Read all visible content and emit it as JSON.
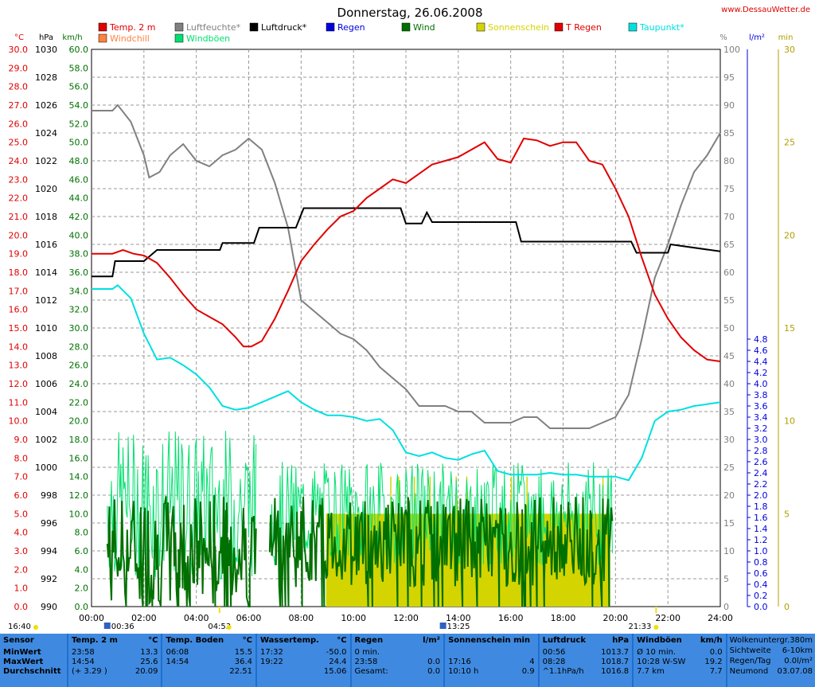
{
  "header": {
    "title": "Donnerstag, 26.06.2008",
    "site": "www.DessauWetter.de"
  },
  "legend": [
    {
      "label": "Temp. 2 m",
      "color": "#e00000"
    },
    {
      "label": "Luftfeuchte*",
      "color": "#808080"
    },
    {
      "label": "Luftdruck*",
      "color": "#000000"
    },
    {
      "label": "Regen",
      "color": "#0000e0"
    },
    {
      "label": "Wind",
      "color": "#007000"
    },
    {
      "label": "Sonnenschein",
      "color": "#d4d400"
    },
    {
      "label": "T Regen",
      "color": "#e00000"
    },
    {
      "label": "Taupunkt*",
      "color": "#00e0e0"
    },
    {
      "label": "Windchill",
      "color": "#ff8040"
    },
    {
      "label": "Windböen",
      "color": "#00e070"
    }
  ],
  "axis_units": {
    "temp": "°C",
    "pressure": "hPa",
    "wind": "km/h",
    "humidity": "%",
    "rain": "l/m²",
    "sun": "min"
  },
  "markers": {
    "sunrise": "04:53",
    "sunset": "21:33",
    "moonset": "16:40",
    "moon1": "00:36",
    "moon2": "13:25"
  },
  "chart_data": {
    "type": "line",
    "x_label": "time",
    "x_ticks": [
      "00:00",
      "02:00",
      "04:00",
      "06:00",
      "08:00",
      "10:00",
      "12:00",
      "14:00",
      "16:00",
      "18:00",
      "20:00",
      "22:00",
      "24:00"
    ],
    "axes": {
      "temp": {
        "range": [
          0,
          30
        ],
        "ticks": [
          "0.0",
          "1.0",
          "2.0",
          "3.0",
          "4.0",
          "5.0",
          "6.0",
          "7.0",
          "8.0",
          "9.0",
          "10.0",
          "11.0",
          "12.0",
          "13.0",
          "14.0",
          "15.0",
          "16.0",
          "17.0",
          "18.0",
          "19.0",
          "20.0",
          "21.0",
          "22.0",
          "23.0",
          "24.0",
          "25.0",
          "26.0",
          "27.0",
          "28.0",
          "29.0",
          "30.0"
        ]
      },
      "pressure": {
        "range": [
          990,
          1030
        ],
        "ticks": [
          "990",
          "992",
          "994",
          "996",
          "998",
          "1000",
          "1002",
          "1004",
          "1006",
          "1008",
          "1010",
          "1012",
          "1014",
          "1016",
          "1018",
          "1020",
          "1022",
          "1024",
          "1026",
          "1028",
          "1030"
        ]
      },
      "wind": {
        "range": [
          0,
          60
        ],
        "ticks": [
          "0.0",
          "2.0",
          "4.0",
          "6.0",
          "8.0",
          "10.0",
          "12.0",
          "14.0",
          "16.0",
          "18.0",
          "20.0",
          "22.0",
          "24.0",
          "26.0",
          "28.0",
          "30.0",
          "32.0",
          "34.0",
          "36.0",
          "38.0",
          "40.0",
          "42.0",
          "44.0",
          "46.0",
          "48.0",
          "50.0",
          "52.0",
          "54.0",
          "56.0",
          "58.0",
          "60.0"
        ]
      },
      "humidity": {
        "range": [
          0,
          100
        ],
        "ticks": [
          "0",
          "5",
          "10",
          "15",
          "20",
          "25",
          "30",
          "35",
          "40",
          "45",
          "50",
          "55",
          "60",
          "65",
          "70",
          "75",
          "80",
          "85",
          "90",
          "95",
          "100"
        ]
      },
      "rain": {
        "range": [
          0,
          4.8
        ],
        "ticks": [
          "0.0",
          "0.2",
          "0.4",
          "0.6",
          "0.8",
          "1.0",
          "1.2",
          "1.4",
          "1.6",
          "1.8",
          "2.0",
          "2.2",
          "2.4",
          "2.6",
          "2.8",
          "3.0",
          "3.2",
          "3.4",
          "3.6",
          "3.8",
          "4.0",
          "4.2",
          "4.4",
          "4.6",
          "4.8"
        ]
      },
      "sun": {
        "range": [
          0,
          30
        ],
        "ticks": [
          "0",
          "5",
          "10",
          "15",
          "20",
          "25",
          "30"
        ]
      }
    },
    "series": [
      {
        "name": "Temp. 2 m",
        "axis": "temp",
        "color": "#e00000",
        "x": [
          0,
          0.8,
          1.2,
          1.6,
          2.0,
          2.5,
          3,
          3.5,
          4,
          4.5,
          5,
          5.5,
          5.8,
          6.1,
          6.5,
          7,
          7.5,
          8,
          8.5,
          9,
          9.5,
          10,
          10.5,
          11,
          11.5,
          12,
          12.5,
          13,
          13.5,
          14,
          14.5,
          15,
          15.5,
          16,
          16.5,
          17,
          17.5,
          18,
          18.5,
          19,
          19.5,
          20,
          20.5,
          21,
          21.5,
          22,
          22.5,
          23,
          23.5,
          24
        ],
        "y": [
          19.0,
          19.0,
          19.2,
          19.0,
          18.9,
          18.5,
          17.7,
          16.8,
          16.0,
          15.6,
          15.2,
          14.5,
          14.0,
          14.0,
          14.3,
          15.5,
          17.0,
          18.6,
          19.5,
          20.3,
          21.0,
          21.3,
          22.0,
          22.5,
          23.0,
          22.8,
          23.3,
          23.8,
          24.0,
          24.2,
          24.6,
          25.0,
          24.1,
          23.9,
          25.2,
          25.1,
          24.8,
          25.0,
          25.0,
          24.0,
          23.8,
          22.5,
          21.0,
          18.8,
          16.8,
          15.5,
          14.5,
          13.8,
          13.3,
          13.2
        ]
      },
      {
        "name": "Luftfeuchte*",
        "axis": "humidity",
        "color": "#808080",
        "x": [
          0,
          0.8,
          1.0,
          1.5,
          2.0,
          2.2,
          2.6,
          3,
          3.5,
          4,
          4.5,
          5,
          5.5,
          6,
          6.5,
          7,
          7.5,
          8,
          8.5,
          9,
          9.5,
          10,
          10.5,
          11,
          11.5,
          12,
          12.5,
          13,
          13.5,
          14,
          14.5,
          15,
          15.5,
          16,
          16.5,
          17,
          17.5,
          18,
          18.5,
          19,
          19.5,
          20,
          20.5,
          21,
          21.5,
          22,
          22.5,
          23,
          23.5,
          24
        ],
        "y": [
          89,
          89,
          90,
          87,
          81,
          77,
          78,
          81,
          83,
          80,
          79,
          81,
          82,
          84,
          82,
          76,
          68,
          55,
          53,
          51,
          49,
          48,
          46,
          43,
          41,
          39,
          36,
          36,
          36,
          35,
          35,
          33,
          33,
          33,
          34,
          34,
          32,
          32,
          32,
          32,
          33,
          34,
          38,
          48,
          59,
          65,
          72,
          78,
          81,
          85
        ]
      },
      {
        "name": "Luftdruck*",
        "axis": "pressure",
        "color": "#000000",
        "x": [
          0,
          0.8,
          0.9,
          2.0,
          2.5,
          3,
          4.9,
          5.0,
          6.2,
          6.4,
          7.8,
          8.1,
          10,
          11.8,
          12.0,
          12.6,
          12.8,
          13.0,
          16.2,
          16.4,
          20.6,
          20.8,
          22,
          22.1,
          24
        ],
        "y": [
          1013.7,
          1013.7,
          1014.8,
          1014.8,
          1015.6,
          1015.6,
          1015.6,
          1016.1,
          1016.1,
          1017.2,
          1017.2,
          1018.6,
          1018.6,
          1018.6,
          1017.5,
          1017.5,
          1018.3,
          1017.6,
          1017.6,
          1016.2,
          1016.2,
          1015.4,
          1015.4,
          1016.0,
          1015.5
        ]
      },
      {
        "name": "Taupunkt*",
        "axis": "temp",
        "color": "#00e0e0",
        "x": [
          0,
          0.8,
          1.0,
          1.5,
          2.0,
          2.5,
          3,
          3.5,
          4,
          4.5,
          5,
          5.5,
          6,
          6.5,
          7,
          7.5,
          8,
          8.5,
          9,
          9.5,
          10,
          10.5,
          11,
          11.5,
          12,
          12.5,
          13,
          13.5,
          14,
          14.5,
          15,
          15.5,
          16,
          16.5,
          17,
          17.5,
          18,
          18.5,
          19,
          19.5,
          20,
          20.5,
          21,
          21.5,
          22,
          22.5,
          23,
          23.5,
          24
        ],
        "y": [
          17.1,
          17.1,
          17.3,
          16.6,
          14.7,
          13.3,
          13.4,
          13.0,
          12.5,
          11.8,
          10.8,
          10.6,
          10.7,
          11.0,
          11.3,
          11.6,
          11.0,
          10.6,
          10.3,
          10.3,
          10.2,
          10.0,
          10.1,
          9.5,
          8.3,
          8.1,
          8.3,
          8.0,
          7.9,
          8.2,
          8.4,
          7.3,
          7.1,
          7.1,
          7.1,
          7.2,
          7.1,
          7.1,
          7.0,
          7.0,
          7.0,
          6.8,
          8.0,
          10.0,
          10.5,
          10.6,
          10.8,
          10.9,
          11.0
        ]
      },
      {
        "name": "Wind",
        "axis": "wind",
        "color": "#007000",
        "x": [],
        "y": []
      },
      {
        "name": "Windböen",
        "axis": "wind",
        "color": "#00e070",
        "x": [],
        "y": []
      },
      {
        "name": "Sonnenschein",
        "axis": "sun",
        "color": "#d4d400",
        "x": [
          8.95,
          19.8
        ],
        "y": [
          5.0,
          5.0
        ]
      }
    ]
  },
  "wind_bands": {
    "segments": [
      {
        "start": 0.6,
        "end": 6.3,
        "base": 6,
        "spread": 9,
        "gust_base": 11,
        "gust_spread": 10
      },
      {
        "start": 6.8,
        "end": 19.9,
        "base": 7,
        "spread": 7,
        "gust_base": 10,
        "gust_spread": 7
      }
    ]
  },
  "table": {
    "columns": [
      {
        "title": "Sensor",
        "unit": "",
        "rows": [
          [
            "MinWert",
            ""
          ],
          [
            "MaxWert",
            ""
          ],
          [
            "Durchschnitt",
            ""
          ]
        ]
      },
      {
        "title": "Temp. 2 m",
        "unit": "°C",
        "rows": [
          [
            "23:58",
            "13.3"
          ],
          [
            "14:54",
            "25.6"
          ],
          [
            "(+ 3.29 )",
            "20.09"
          ]
        ]
      },
      {
        "title": "Temp. Boden",
        "unit": "°C",
        "rows": [
          [
            "06:08",
            "15.5"
          ],
          [
            "14:54",
            "36.4"
          ],
          [
            "",
            "22.51"
          ]
        ]
      },
      {
        "title": "Wassertemp.",
        "unit": "°C",
        "rows": [
          [
            "17:32",
            "-50.0"
          ],
          [
            "19:22",
            "24.4"
          ],
          [
            "",
            "15.06"
          ]
        ]
      },
      {
        "title": "Regen",
        "unit": "l/m²",
        "rows": [
          [
            "0 min.",
            ""
          ],
          [
            "23:58",
            "0.0"
          ],
          [
            "Gesamt:",
            "0.0"
          ]
        ]
      },
      {
        "title": "Sonnenschein min",
        "unit": "",
        "rows": [
          [
            "",
            ""
          ],
          [
            "17:16",
            "4"
          ],
          [
            "10:10 h",
            "0.9"
          ]
        ]
      },
      {
        "title": "Luftdruck",
        "unit": "hPa",
        "rows": [
          [
            "00:56",
            "1013.7"
          ],
          [
            "08:28",
            "1018.7"
          ],
          [
            "^1.1hPa/h",
            "1016.8"
          ]
        ]
      },
      {
        "title": "Windböen",
        "unit": "km/h",
        "rows": [
          [
            "Ø 10 min.",
            "0.0"
          ],
          [
            "10:28   W-SW",
            "19.2"
          ],
          [
            "7.7 km",
            "7.7"
          ]
        ]
      }
    ],
    "side": [
      [
        "Wolkenuntergr.",
        "380m"
      ],
      [
        "Sichtweite",
        "6-10km"
      ],
      [
        "Regen/Tag",
        "0.0l/m²"
      ],
      [
        "Neumond",
        "03.07.08"
      ]
    ]
  }
}
